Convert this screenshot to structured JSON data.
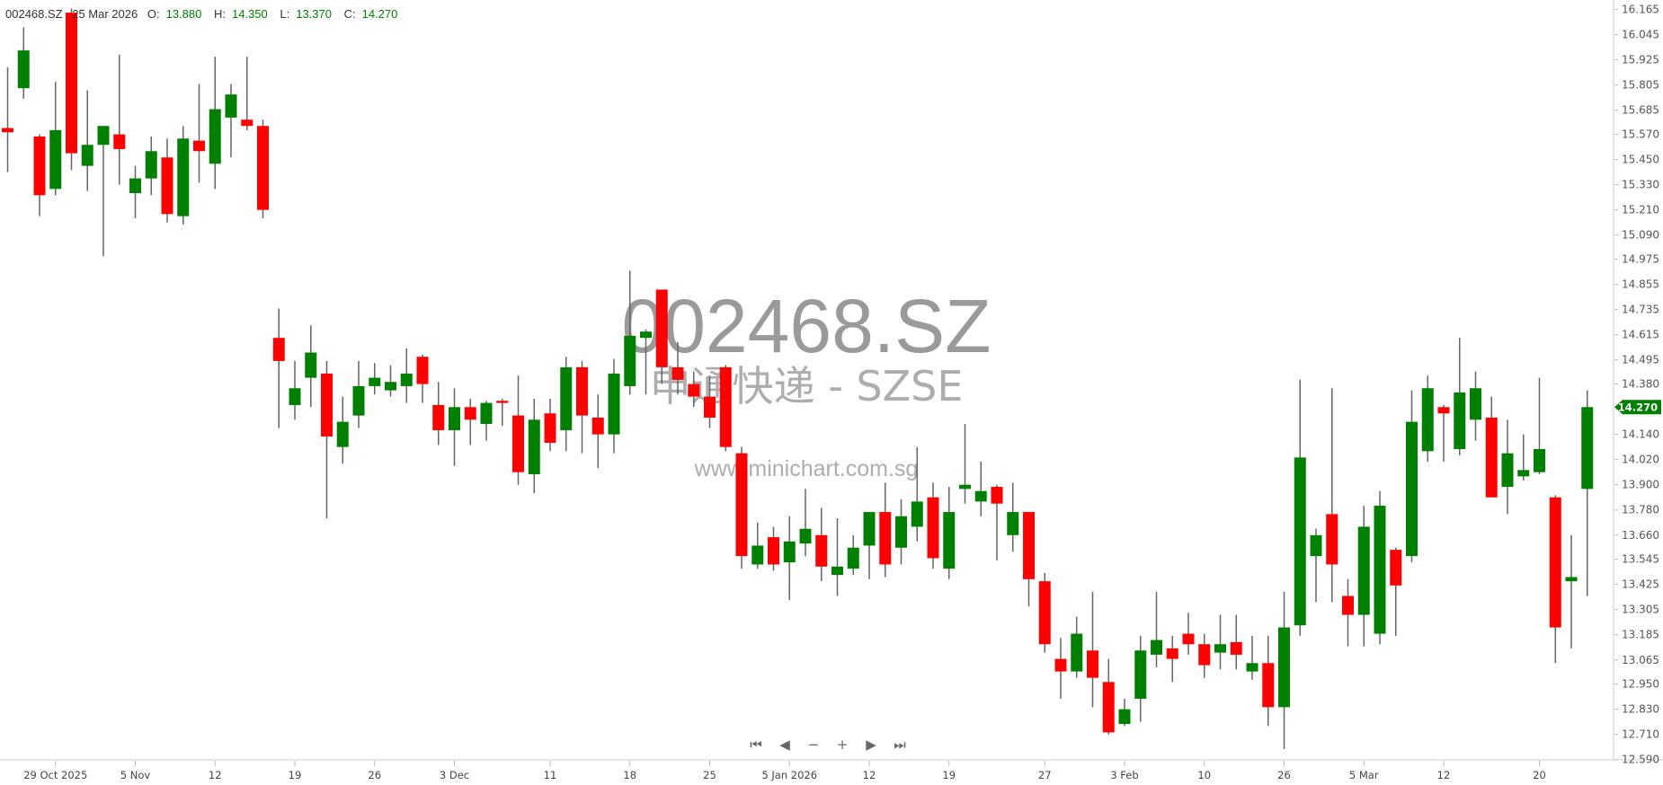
{
  "header": {
    "symbol": "002468.SZ",
    "date": "25 Mar 2026",
    "open_label": "O:",
    "open": "13.880",
    "high_label": "H:",
    "high": "14.350",
    "low_label": "L:",
    "low": "13.370",
    "close_label": "C:",
    "close": "14.270"
  },
  "watermark": {
    "symbol": "002468.SZ",
    "name": "申通快递 - SZSE",
    "site": "www.minichart.com.sg"
  },
  "nav": {
    "first": "⏮",
    "prev": "◀",
    "zoom_out": "−",
    "zoom_in": "+",
    "next": "▶",
    "last": "⏭"
  },
  "colors": {
    "up": "#008000",
    "down": "#ff0000",
    "wick": "#666666",
    "last_price_tag": "#008000"
  },
  "chart_data": {
    "type": "candlestick",
    "grid": false,
    "ylim": [
      12.47,
      16.21
    ],
    "y_ticks": [
      "16.165",
      "16.045",
      "15.925",
      "15.805",
      "15.685",
      "15.570",
      "15.450",
      "15.330",
      "15.210",
      "15.090",
      "14.975",
      "14.855",
      "14.735",
      "14.615",
      "14.495",
      "14.380",
      "14.140",
      "14.020",
      "13.900",
      "13.780",
      "13.660",
      "13.545",
      "13.425",
      "13.305",
      "13.185",
      "13.065",
      "12.950",
      "12.830",
      "12.710",
      "12.590"
    ],
    "last_price": "14.270",
    "x_labels": [
      {
        "i": 3,
        "label": "29 Oct 2025"
      },
      {
        "i": 8,
        "label": "5 Nov"
      },
      {
        "i": 13,
        "label": "12"
      },
      {
        "i": 18,
        "label": "19"
      },
      {
        "i": 23,
        "label": "26"
      },
      {
        "i": 28,
        "label": "3 Dec"
      },
      {
        "i": 34,
        "label": "11"
      },
      {
        "i": 39,
        "label": "18"
      },
      {
        "i": 44,
        "label": "25"
      },
      {
        "i": 49,
        "label": "5 Jan 2026"
      },
      {
        "i": 54,
        "label": "12"
      },
      {
        "i": 59,
        "label": "19"
      },
      {
        "i": 65,
        "label": "27"
      },
      {
        "i": 70,
        "label": "3 Feb"
      },
      {
        "i": 75,
        "label": "10"
      },
      {
        "i": 80,
        "label": "26"
      },
      {
        "i": 85,
        "label": "5 Mar"
      },
      {
        "i": 90,
        "label": "12"
      },
      {
        "i": 96,
        "label": "20"
      }
    ],
    "ohlc": [
      [
        15.6,
        15.89,
        15.39,
        15.58
      ],
      [
        15.79,
        16.08,
        15.74,
        15.97
      ],
      [
        15.56,
        15.57,
        15.18,
        15.28
      ],
      [
        15.31,
        15.82,
        15.28,
        15.59
      ],
      [
        16.15,
        16.17,
        15.4,
        15.48
      ],
      [
        15.42,
        15.78,
        15.3,
        15.52
      ],
      [
        15.52,
        15.61,
        14.99,
        15.61
      ],
      [
        15.57,
        15.95,
        15.33,
        15.5
      ],
      [
        15.29,
        15.42,
        15.17,
        15.36
      ],
      [
        15.36,
        15.56,
        15.28,
        15.49
      ],
      [
        15.46,
        15.55,
        15.15,
        15.19
      ],
      [
        15.18,
        15.61,
        15.14,
        15.55
      ],
      [
        15.54,
        15.81,
        15.34,
        15.49
      ],
      [
        15.43,
        15.94,
        15.31,
        15.69
      ],
      [
        15.65,
        15.81,
        15.46,
        15.76
      ],
      [
        15.64,
        15.94,
        15.59,
        15.61
      ],
      [
        15.61,
        15.64,
        15.17,
        15.21
      ],
      [
        14.6,
        14.74,
        14.17,
        14.49
      ],
      [
        14.28,
        14.49,
        14.21,
        14.36
      ],
      [
        14.41,
        14.66,
        14.27,
        14.53
      ],
      [
        14.43,
        14.49,
        13.74,
        14.13
      ],
      [
        14.08,
        14.32,
        14.0,
        14.2
      ],
      [
        14.23,
        14.49,
        14.17,
        14.37
      ],
      [
        14.37,
        14.48,
        14.33,
        14.41
      ],
      [
        14.35,
        14.47,
        14.32,
        14.39
      ],
      [
        14.37,
        14.55,
        14.29,
        14.43
      ],
      [
        14.51,
        14.52,
        14.29,
        14.38
      ],
      [
        14.28,
        14.39,
        14.09,
        14.16
      ],
      [
        14.16,
        14.36,
        13.99,
        14.27
      ],
      [
        14.27,
        14.31,
        14.09,
        14.21
      ],
      [
        14.19,
        14.3,
        14.11,
        14.29
      ],
      [
        14.3,
        14.31,
        14.18,
        14.29
      ],
      [
        14.23,
        14.42,
        13.9,
        13.96
      ],
      [
        13.95,
        14.31,
        13.86,
        14.21
      ],
      [
        14.24,
        14.31,
        14.06,
        14.1
      ],
      [
        14.16,
        14.51,
        14.06,
        14.46
      ],
      [
        14.46,
        14.49,
        14.05,
        14.23
      ],
      [
        14.22,
        14.33,
        13.98,
        14.14
      ],
      [
        14.14,
        14.5,
        14.05,
        14.43
      ],
      [
        14.37,
        14.92,
        14.33,
        14.61
      ],
      [
        14.6,
        14.64,
        14.33,
        14.63
      ],
      [
        14.83,
        14.83,
        14.38,
        14.46
      ],
      [
        14.46,
        14.58,
        14.33,
        14.4
      ],
      [
        14.38,
        14.44,
        14.27,
        14.32
      ],
      [
        14.32,
        14.42,
        14.17,
        14.22
      ],
      [
        14.46,
        14.47,
        14.06,
        14.08
      ],
      [
        14.05,
        14.08,
        13.5,
        13.56
      ],
      [
        13.52,
        13.72,
        13.5,
        13.61
      ],
      [
        13.65,
        13.7,
        13.49,
        13.52
      ],
      [
        13.53,
        13.75,
        13.35,
        13.63
      ],
      [
        13.62,
        13.88,
        13.56,
        13.69
      ],
      [
        13.66,
        13.79,
        13.44,
        13.51
      ],
      [
        13.47,
        13.74,
        13.37,
        13.51
      ],
      [
        13.5,
        13.66,
        13.47,
        13.6
      ],
      [
        13.61,
        13.77,
        13.45,
        13.77
      ],
      [
        13.77,
        13.91,
        13.46,
        13.52
      ],
      [
        13.6,
        13.83,
        13.52,
        13.75
      ],
      [
        13.7,
        14.08,
        13.63,
        13.82
      ],
      [
        13.84,
        13.91,
        13.5,
        13.55
      ],
      [
        13.5,
        13.89,
        13.45,
        13.77
      ],
      [
        13.88,
        14.19,
        13.81,
        13.9
      ],
      [
        13.82,
        14.01,
        13.75,
        13.87
      ],
      [
        13.89,
        13.9,
        13.54,
        13.81
      ],
      [
        13.66,
        13.91,
        13.58,
        13.77
      ],
      [
        13.77,
        13.77,
        13.32,
        13.45
      ],
      [
        13.44,
        13.48,
        13.1,
        13.14
      ],
      [
        13.07,
        13.17,
        12.88,
        13.01
      ],
      [
        13.01,
        13.27,
        12.98,
        13.19
      ],
      [
        13.11,
        13.39,
        12.84,
        12.98
      ],
      [
        12.96,
        13.07,
        12.71,
        12.72
      ],
      [
        12.76,
        12.88,
        12.75,
        12.83
      ],
      [
        12.88,
        13.18,
        12.77,
        13.11
      ],
      [
        13.09,
        13.39,
        13.03,
        13.16
      ],
      [
        13.12,
        13.18,
        12.96,
        13.07
      ],
      [
        13.19,
        13.29,
        13.09,
        13.14
      ],
      [
        13.14,
        13.19,
        12.98,
        13.04
      ],
      [
        13.1,
        13.28,
        13.02,
        13.14
      ],
      [
        13.15,
        13.28,
        13.02,
        13.09
      ],
      [
        13.01,
        13.18,
        12.97,
        13.05
      ],
      [
        13.05,
        13.18,
        12.75,
        12.84
      ],
      [
        12.84,
        13.39,
        12.64,
        13.22
      ],
      [
        13.23,
        14.4,
        13.18,
        14.03
      ],
      [
        13.56,
        13.69,
        13.34,
        13.66
      ],
      [
        13.76,
        14.36,
        13.34,
        13.52
      ],
      [
        13.37,
        13.45,
        13.13,
        13.28
      ],
      [
        13.28,
        13.8,
        13.13,
        13.7
      ],
      [
        13.19,
        13.87,
        13.14,
        13.8
      ],
      [
        13.59,
        13.6,
        13.18,
        13.42
      ],
      [
        13.56,
        14.35,
        13.53,
        14.2
      ],
      [
        14.06,
        14.42,
        14.01,
        14.36
      ],
      [
        14.27,
        14.28,
        14.01,
        14.24
      ],
      [
        14.07,
        14.6,
        14.04,
        14.34
      ],
      [
        14.21,
        14.44,
        14.11,
        14.36
      ],
      [
        14.22,
        14.32,
        13.84,
        13.84
      ],
      [
        13.89,
        14.21,
        13.76,
        14.05
      ],
      [
        13.94,
        14.14,
        13.92,
        13.97
      ],
      [
        13.96,
        14.41,
        13.95,
        14.07
      ],
      [
        13.84,
        13.85,
        13.05,
        13.22
      ],
      [
        13.44,
        13.66,
        13.12,
        13.46
      ],
      [
        13.88,
        14.35,
        13.37,
        14.27
      ]
    ]
  }
}
